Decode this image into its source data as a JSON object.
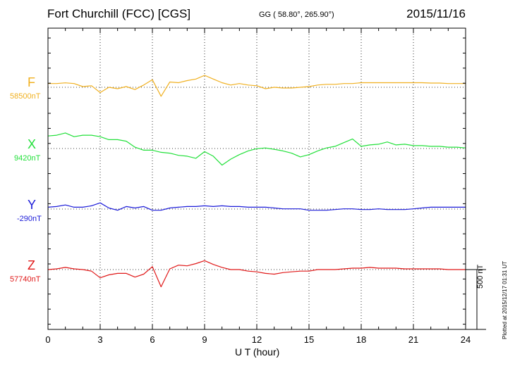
{
  "header": {
    "station": "Fort Churchill (FCC)  [CGS]",
    "coords": "GG ( 58.80°, 265.90°)",
    "date": "2015/11/16"
  },
  "components": [
    {
      "name": "F",
      "baseline": "58500nT",
      "color": "#f0b020"
    },
    {
      "name": "X",
      "baseline": "9420nT",
      "color": "#22e03a"
    },
    {
      "name": "Y",
      "baseline": "-290nT",
      "color": "#1a1ad8"
    },
    {
      "name": "Z",
      "baseline": "57740nT",
      "color": "#e01818"
    }
  ],
  "axis": {
    "xlabel": "U T (hour)"
  },
  "scale_bar": {
    "label": "500 nT"
  },
  "footer": {
    "plotted": "Plotted at 2015/12/17 01:31  UT"
  },
  "chart_data": {
    "type": "line",
    "xlabel": "U T (hour)",
    "xlim": [
      0,
      24
    ],
    "x_ticks": [
      0,
      3,
      6,
      9,
      12,
      15,
      18,
      21,
      24
    ],
    "grid": "dotted vertical every 3 h; dotted horizontal at each baseline",
    "y_unit": "nT",
    "scale_bar_nT": 500,
    "x": [
      0,
      0.5,
      1,
      1.5,
      2,
      2.5,
      3,
      3.5,
      4,
      4.5,
      5,
      5.5,
      6,
      6.5,
      7,
      7.5,
      8,
      8.5,
      9,
      9.5,
      10,
      10.5,
      11,
      11.5,
      12,
      12.5,
      13,
      13.5,
      14,
      14.5,
      15,
      15.5,
      16,
      16.5,
      17,
      17.5,
      18,
      18.5,
      19,
      19.5,
      20,
      20.5,
      21,
      21.5,
      22,
      22.5,
      23,
      23.5,
      24
    ],
    "series": [
      {
        "name": "F",
        "baseline": 58500,
        "values": [
          58531,
          58531,
          58537,
          58531,
          58506,
          58513,
          58456,
          58500,
          58488,
          58506,
          58481,
          58519,
          58563,
          58425,
          58544,
          58538,
          58556,
          58569,
          58600,
          58569,
          58538,
          58519,
          58531,
          58519,
          58513,
          58488,
          58500,
          58494,
          58494,
          58500,
          58506,
          58519,
          58525,
          58525,
          58531,
          58531,
          58538,
          58538,
          58538,
          58538,
          58538,
          58538,
          58538,
          58538,
          58535,
          58535,
          58531,
          58531,
          58531
        ]
      },
      {
        "name": "X",
        "baseline": 9420,
        "values": [
          9525,
          9531,
          9550,
          9519,
          9531,
          9531,
          9519,
          9494,
          9494,
          9481,
          9431,
          9406,
          9406,
          9388,
          9381,
          9363,
          9356,
          9338,
          9394,
          9356,
          9281,
          9331,
          9369,
          9400,
          9419,
          9425,
          9413,
          9400,
          9381,
          9350,
          9369,
          9400,
          9425,
          9438,
          9469,
          9500,
          9438,
          9450,
          9456,
          9475,
          9450,
          9456,
          9444,
          9444,
          9438,
          9438,
          9431,
          9431,
          9425
        ]
      },
      {
        "name": "Y",
        "baseline": -290,
        "values": [
          -275,
          -269,
          -256,
          -275,
          -275,
          -263,
          -238,
          -281,
          -300,
          -269,
          -281,
          -269,
          -300,
          -300,
          -281,
          -275,
          -269,
          -269,
          -263,
          -269,
          -263,
          -269,
          -269,
          -275,
          -275,
          -275,
          -281,
          -288,
          -288,
          -288,
          -300,
          -300,
          -300,
          -294,
          -288,
          -288,
          -294,
          -294,
          -288,
          -294,
          -294,
          -294,
          -288,
          -281,
          -275,
          -275,
          -275,
          -275,
          -275
        ]
      },
      {
        "name": "Z",
        "baseline": 57740,
        "values": [
          57740,
          57746,
          57758,
          57746,
          57740,
          57727,
          57671,
          57696,
          57708,
          57708,
          57677,
          57702,
          57765,
          57596,
          57746,
          57777,
          57771,
          57790,
          57815,
          57783,
          57758,
          57740,
          57740,
          57727,
          57721,
          57708,
          57702,
          57715,
          57721,
          57727,
          57727,
          57740,
          57740,
          57740,
          57746,
          57752,
          57752,
          57758,
          57752,
          57752,
          57752,
          57746,
          57746,
          57746,
          57746,
          57746,
          57740,
          57740,
          57740
        ]
      }
    ]
  }
}
